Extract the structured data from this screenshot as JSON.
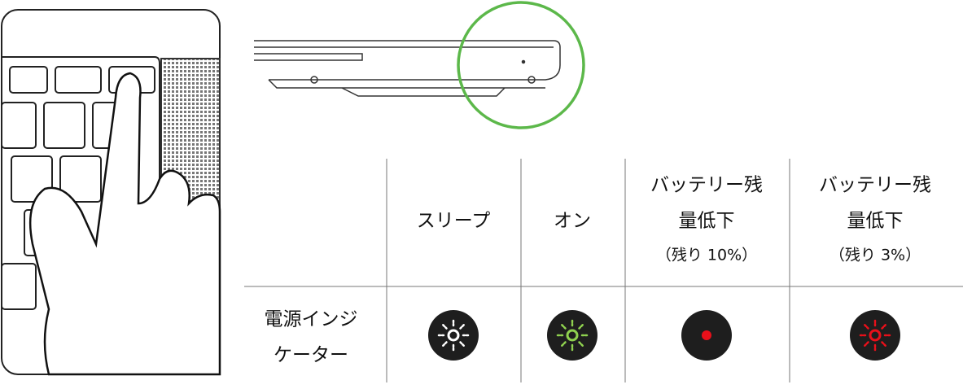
{
  "table": {
    "columns": [
      [
        "スリープ"
      ],
      [
        "オン"
      ],
      [
        "バッテリー残",
        "量低下",
        "（残り 10%）"
      ],
      [
        "バッテリー残",
        "量低下",
        "（残り 3%）"
      ]
    ],
    "row_label": [
      "電源インジ",
      "ケーター"
    ]
  }
}
